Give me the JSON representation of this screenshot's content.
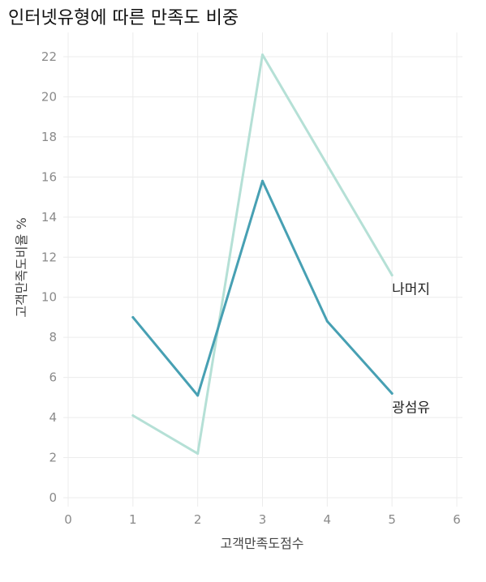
{
  "chart_data": {
    "type": "line",
    "title": "인터넷유형에 따른 만족도 비중",
    "xlabel": "고객만족도점수",
    "ylabel": "고객만족도비율 %",
    "xlim": [
      0,
      6
    ],
    "ylim": [
      0,
      22
    ],
    "x_ticks": [
      0,
      1,
      2,
      3,
      4,
      5,
      6
    ],
    "y_ticks": [
      0,
      2,
      4,
      6,
      8,
      10,
      12,
      14,
      16,
      18,
      20,
      22
    ],
    "grid": true,
    "legend": "direct labels at line ends",
    "series": [
      {
        "name": "나머지",
        "color": "#b5e0d6",
        "x": [
          1,
          2,
          3,
          4,
          5
        ],
        "values": [
          4.1,
          2.2,
          22.1,
          16.6,
          11.1
        ]
      },
      {
        "name": "광섬유",
        "color": "#47a0b3",
        "x": [
          1,
          2,
          3,
          4,
          5
        ],
        "values": [
          9.0,
          5.1,
          15.8,
          8.8,
          5.2
        ]
      }
    ]
  }
}
